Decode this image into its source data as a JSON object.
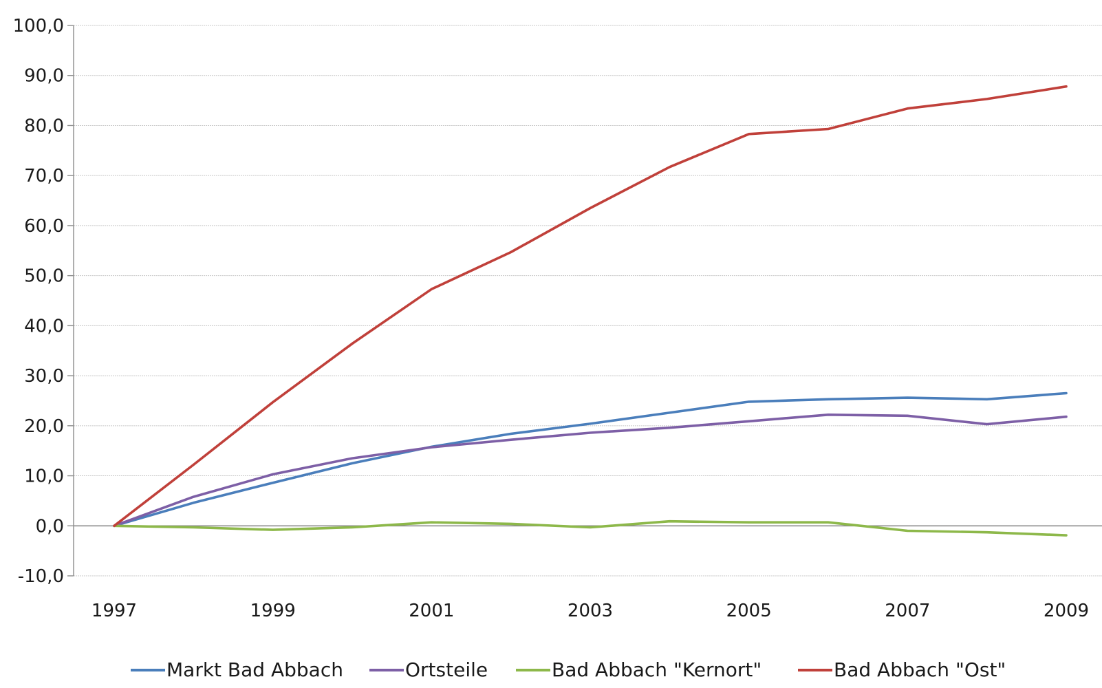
{
  "chart_data": {
    "type": "line",
    "title": "",
    "xlabel": "",
    "ylabel": "",
    "x": [
      1997,
      1998,
      1999,
      2000,
      2001,
      2002,
      2003,
      2004,
      2005,
      2006,
      2007,
      2008,
      2009
    ],
    "x_tick_labels": [
      "1997",
      "1999",
      "2001",
      "2003",
      "2005",
      "2007",
      "2009"
    ],
    "x_ticks": [
      1997,
      1999,
      2001,
      2003,
      2005,
      2007,
      2009
    ],
    "xlim": [
      1997,
      2009
    ],
    "y_ticks": [
      -10,
      0,
      10,
      20,
      30,
      40,
      50,
      60,
      70,
      80,
      90,
      100
    ],
    "y_tick_labels": [
      "-10,0",
      "0,0",
      "10,0",
      "20,0",
      "30,0",
      "40,0",
      "50,0",
      "60,0",
      "70,0",
      "80,0",
      "90,0",
      "100,0"
    ],
    "ylim": [
      -10,
      100
    ],
    "grid": true,
    "legend_position": "bottom",
    "series": [
      {
        "name": "Markt Bad Abbach",
        "color": "#4a7ebb",
        "values": [
          0.0,
          4.6,
          8.6,
          12.5,
          15.8,
          18.4,
          20.4,
          22.6,
          24.8,
          25.3,
          25.6,
          25.3,
          26.5
        ]
      },
      {
        "name": "Ortsteile",
        "color": "#7d5fa6",
        "values": [
          0.0,
          5.8,
          10.3,
          13.5,
          15.7,
          17.2,
          18.6,
          19.6,
          20.9,
          22.2,
          22.0,
          20.3,
          21.8
        ]
      },
      {
        "name": "Bad Abbach \"Kernort\"",
        "color": "#8db84a",
        "values": [
          0.0,
          -0.3,
          -0.8,
          -0.3,
          0.7,
          0.4,
          -0.3,
          0.9,
          0.7,
          0.7,
          -1.0,
          -1.3,
          -1.9
        ]
      },
      {
        "name": "Bad Abbach \"Ost\"",
        "color": "#c0403a",
        "values": [
          0.0,
          12.2,
          24.7,
          36.4,
          47.3,
          54.7,
          63.5,
          71.7,
          78.3,
          79.3,
          83.4,
          85.3,
          87.8
        ]
      }
    ]
  }
}
